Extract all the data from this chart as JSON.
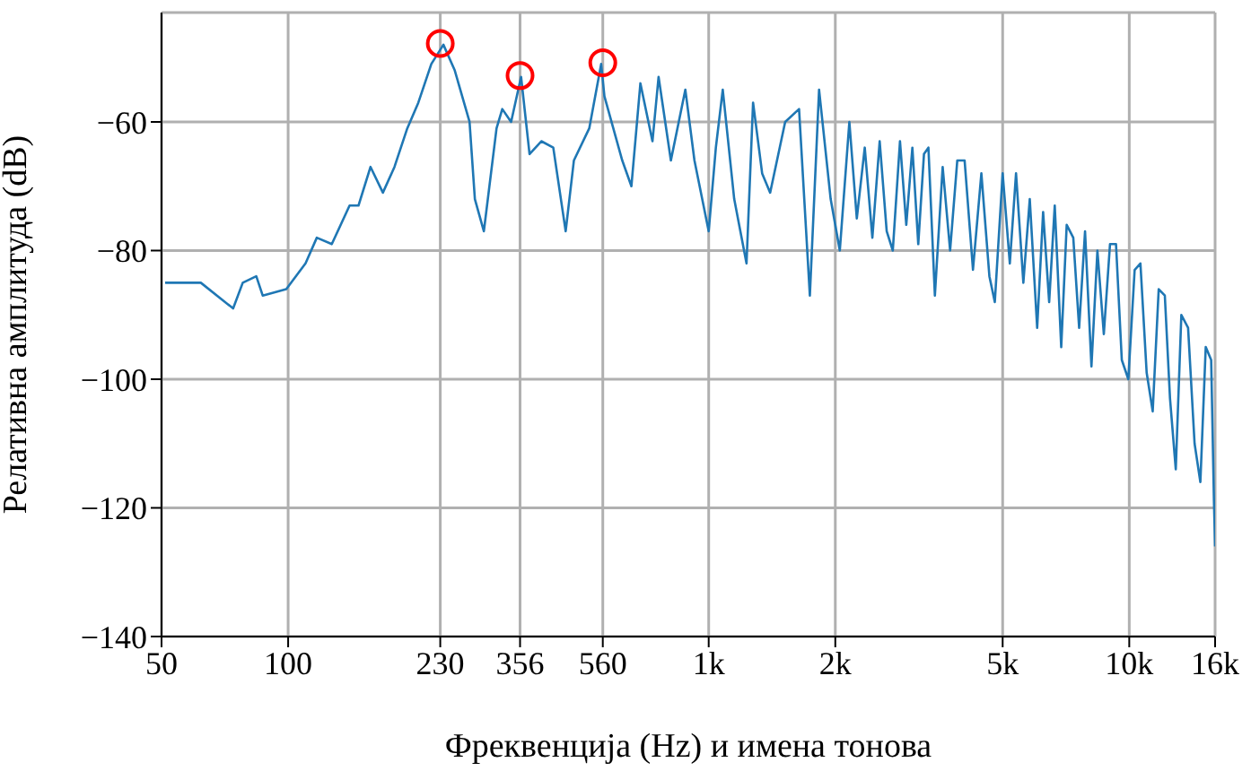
{
  "chart_data": {
    "type": "line",
    "xlabel": "Фреквенција (Hz) и имена тонова",
    "ylabel": "Релативна амплитуда (dB)",
    "log": "x",
    "grid": true,
    "xlim": [
      50,
      16000
    ],
    "ylim": [
      -140,
      -43
    ],
    "xticks": [
      50,
      100,
      230,
      356,
      560,
      {
        "value": 1000,
        "label": "1k"
      },
      {
        "value": 2000,
        "label": "2k"
      },
      {
        "value": 5000,
        "label": "5k"
      },
      {
        "value": 10000,
        "label": "10k"
      },
      {
        "value": 16000,
        "label": "16k"
      }
    ],
    "yticks": [
      -140,
      -120,
      -100,
      -80,
      -60
    ],
    "series": [
      {
        "color": "#1f77b4",
        "marker": "none",
        "line_style": "solid",
        "x": [
          51,
          62,
          74,
          78,
          84,
          87,
          99,
          110,
          117,
          127,
          140,
          147,
          157,
          168,
          179,
          192,
          204,
          219,
          234,
          249,
          270,
          278,
          292,
          313,
          323,
          339,
          358,
          375,
          400,
          427,
          457,
          478,
          520,
          555,
          565,
          623,
          655,
          688,
          735,
          760,
          813,
          880,
          925,
          1000,
          1040,
          1080,
          1150,
          1230,
          1275,
          1340,
          1400,
          1520,
          1640,
          1740,
          1830,
          1950,
          2050,
          2160,
          2250,
          2350,
          2450,
          2550,
          2650,
          2740,
          2850,
          2950,
          3050,
          3150,
          3250,
          3330,
          3450,
          3600,
          3750,
          3900,
          4060,
          4250,
          4450,
          4650,
          4790,
          5000,
          5200,
          5380,
          5600,
          5800,
          6040,
          6240,
          6450,
          6650,
          6890,
          7100,
          7360,
          7600,
          7850,
          8130,
          8400,
          8700,
          9000,
          9300,
          9600,
          9950,
          10300,
          10630,
          11000,
          11370,
          11750,
          12150,
          12500,
          12900,
          13300,
          13800,
          14300,
          14760,
          15200,
          15660,
          15900,
          16000
        ],
        "values": [
          -85,
          -85,
          -89,
          -85,
          -84,
          -87,
          -86,
          -82,
          -78,
          -79,
          -73,
          -73,
          -67,
          -71,
          -67,
          -61,
          -57,
          -51,
          -48,
          -52,
          -60,
          -72,
          -77,
          -61,
          -58,
          -60,
          -53,
          -65,
          -63,
          -64,
          -77,
          -66,
          -61,
          -51,
          -56,
          -66,
          -70,
          -54,
          -63,
          -53,
          -66,
          -55,
          -66,
          -77,
          -64,
          -55,
          -72,
          -82,
          -57,
          -68,
          -71,
          -60,
          -58,
          -87,
          -55,
          -72,
          -80,
          -60,
          -75,
          -64,
          -78,
          -63,
          -77,
          -80,
          -63,
          -76,
          -64,
          -79,
          -65,
          -64,
          -87,
          -67,
          -80,
          -66,
          -66,
          -83,
          -68,
          -84,
          -88,
          -68,
          -82,
          -68,
          -85,
          -72,
          -92,
          -74,
          -88,
          -73,
          -95,
          -76,
          -78,
          -92,
          -77,
          -98,
          -80,
          -93,
          -79,
          -79,
          -97,
          -100,
          -83,
          -82,
          -99,
          -105,
          -86,
          -87,
          -103,
          -114,
          -90,
          -92,
          -110,
          -116,
          -95,
          -97,
          -119,
          -126
        ]
      },
      {
        "type": "scatter",
        "color": "#ff0000",
        "marker": "circle",
        "x": [
          230,
          356,
          560
        ],
        "values": [
          -47.8,
          -52.8,
          -50.8
        ]
      }
    ]
  }
}
